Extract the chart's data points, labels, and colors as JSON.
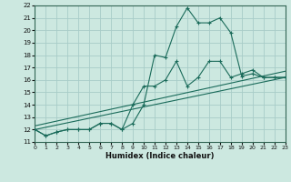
{
  "xlabel": "Humidex (Indice chaleur)",
  "bg_color": "#cce8e0",
  "grid_color": "#a8ccc8",
  "line_color": "#1a6b5a",
  "xlim": [
    0,
    23
  ],
  "ylim": [
    11,
    22
  ],
  "xticks": [
    0,
    1,
    2,
    3,
    4,
    5,
    6,
    7,
    8,
    9,
    10,
    11,
    12,
    13,
    14,
    15,
    16,
    17,
    18,
    19,
    20,
    21,
    22,
    23
  ],
  "yticks": [
    11,
    12,
    13,
    14,
    15,
    16,
    17,
    18,
    19,
    20,
    21,
    22
  ],
  "line1_x": [
    0,
    1,
    2,
    3,
    4,
    5,
    6,
    7,
    8,
    9,
    10,
    11,
    12,
    13,
    14,
    15,
    16,
    17,
    18,
    19,
    20,
    21,
    22,
    23
  ],
  "line1_y": [
    12.0,
    11.5,
    11.8,
    12.0,
    12.0,
    12.0,
    12.5,
    12.5,
    12.0,
    12.5,
    14.0,
    18.0,
    17.8,
    20.3,
    21.8,
    20.6,
    20.6,
    21.0,
    19.8,
    16.3,
    16.5,
    16.2,
    16.2,
    16.2
  ],
  "line2_x": [
    0,
    1,
    2,
    3,
    4,
    5,
    6,
    7,
    8,
    9,
    10,
    11,
    12,
    13,
    14,
    15,
    16,
    17,
    18,
    19,
    20,
    21,
    22,
    23
  ],
  "line2_y": [
    12.0,
    11.5,
    11.8,
    12.0,
    12.0,
    12.0,
    12.5,
    12.5,
    12.0,
    14.0,
    15.5,
    15.5,
    16.0,
    17.5,
    15.5,
    16.2,
    17.5,
    17.5,
    16.2,
    16.5,
    16.8,
    16.2,
    16.2,
    16.2
  ],
  "line3_x": [
    0,
    23
  ],
  "line3_y": [
    12.0,
    16.2
  ],
  "line4_x": [
    0,
    23
  ],
  "line4_y": [
    12.0,
    16.2
  ]
}
